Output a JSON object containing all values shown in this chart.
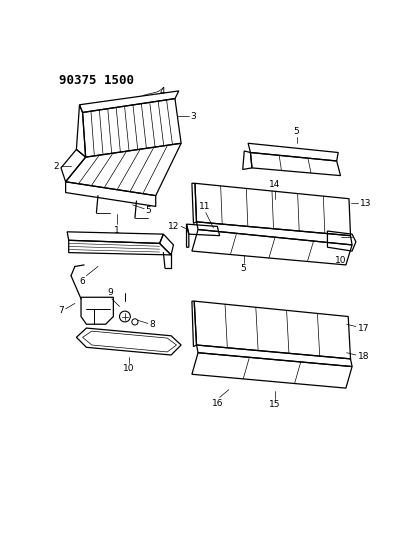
{
  "title": "90375 1500",
  "background_color": "#ffffff",
  "text_color": "#000000",
  "figsize": [
    4.06,
    5.33
  ],
  "dpi": 100,
  "line_width": 0.9,
  "label_fontsize": 6.5,
  "title_fontsize": 9
}
